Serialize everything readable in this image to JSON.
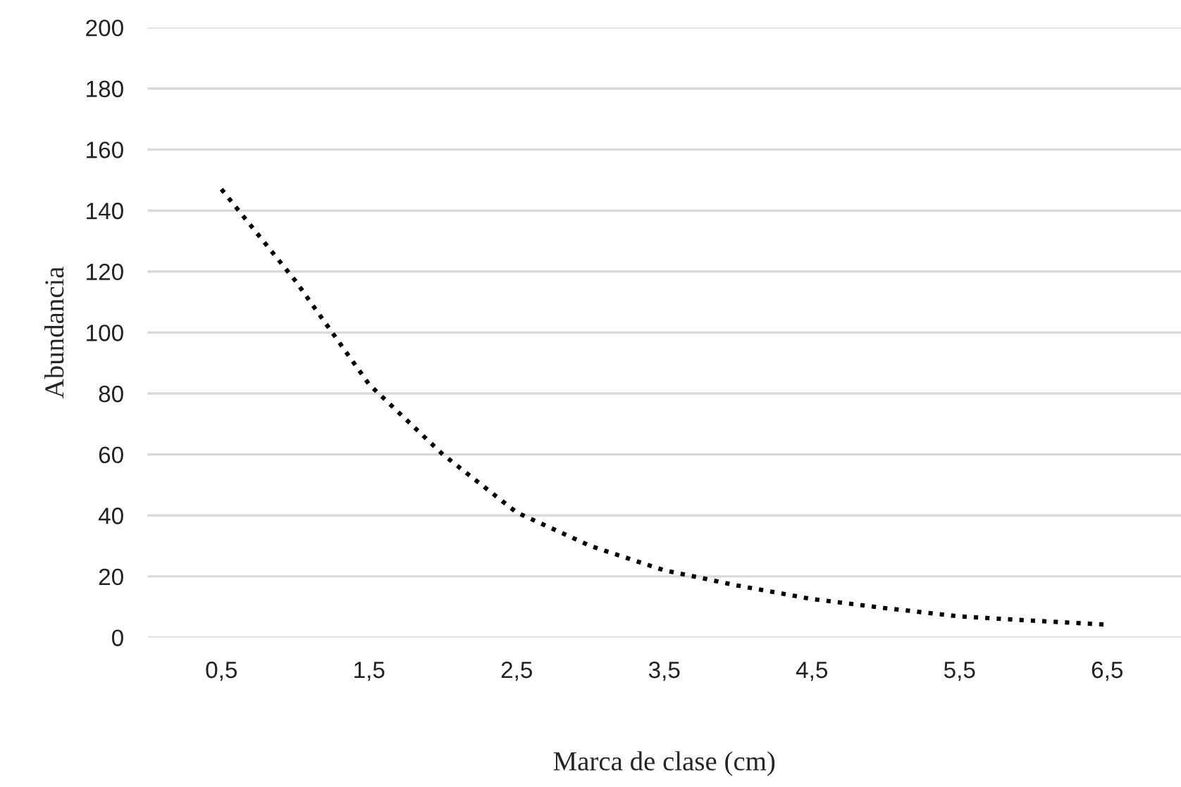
{
  "chart_data": {
    "type": "line",
    "xlabel": "Marca de clase (cm)",
    "ylabel": "Abundancia",
    "x": [
      0.5,
      1,
      1.5,
      2,
      2.5,
      3,
      3.5,
      4,
      4.5,
      5,
      5.5,
      6,
      6.5
    ],
    "series": [
      {
        "color": "#000000",
        "values": [
          147,
          117,
          83,
          60,
          41,
          30,
          22,
          17,
          12.6,
          9.6,
          6.9,
          5.5,
          4.2
        ]
      }
    ],
    "xlim": [
      0,
      7
    ],
    "xticks": [
      {
        "value": 0.5,
        "label": "0,5"
      },
      {
        "value": 1.5,
        "label": "1,5"
      },
      {
        "value": 2.5,
        "label": "2,5"
      },
      {
        "value": 3.5,
        "label": "3,5"
      },
      {
        "value": 4.5,
        "label": "4,5"
      },
      {
        "value": 5.5,
        "label": "5,5"
      },
      {
        "value": 6.5,
        "label": "6,5"
      }
    ],
    "ylim": [
      0,
      200
    ],
    "yticks": [
      0,
      20,
      40,
      60,
      80,
      100,
      120,
      140,
      160,
      180,
      200
    ],
    "grid": "y",
    "line_style": "dotted",
    "marker": "none",
    "legend": false
  }
}
